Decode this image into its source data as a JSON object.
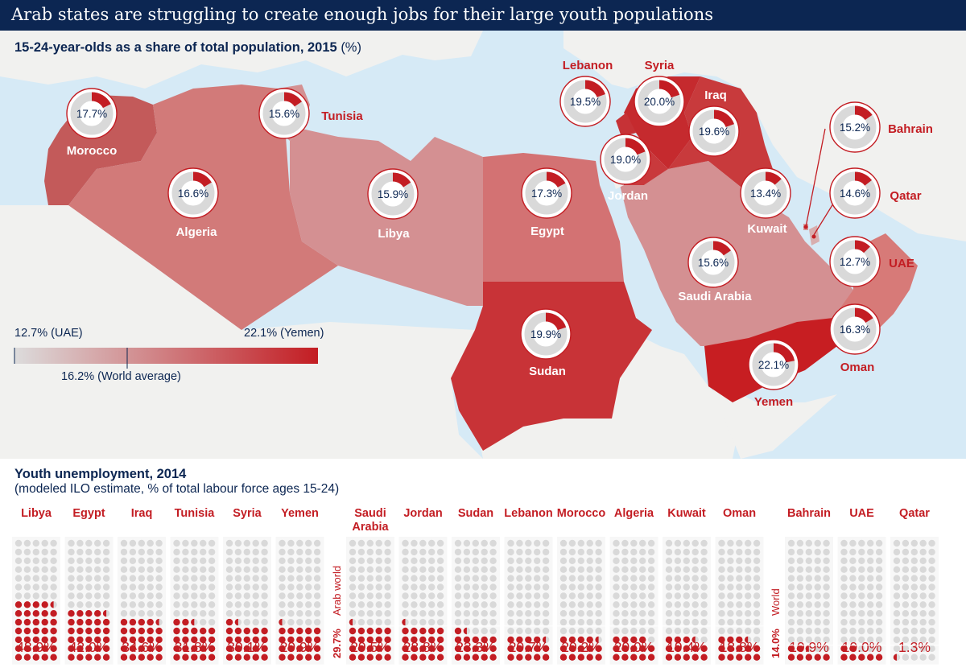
{
  "title": "Arab states are struggling to create enough jobs for their large youth populations",
  "map_section": {
    "subtitle": "15-24-year-olds as a share of total population, 2015",
    "unit": "(%)",
    "legend": {
      "min_label": "12.7% (UAE)",
      "max_label": "22.1% (Yemen)",
      "world_label": "16.2% (World average)",
      "min": 12.7,
      "max": 22.1,
      "world": 16.2,
      "color_low": "#d8d8d8",
      "color_high": "#c31d23"
    },
    "countries": [
      {
        "name": "Morocco",
        "value": 17.7,
        "value_label": "17.7%"
      },
      {
        "name": "Tunisia",
        "value": 15.6,
        "value_label": "15.6%"
      },
      {
        "name": "Algeria",
        "value": 16.6,
        "value_label": "16.6%"
      },
      {
        "name": "Libya",
        "value": 15.9,
        "value_label": "15.9%"
      },
      {
        "name": "Egypt",
        "value": 17.3,
        "value_label": "17.3%"
      },
      {
        "name": "Sudan",
        "value": 19.9,
        "value_label": "19.9%"
      },
      {
        "name": "Lebanon",
        "value": 19.5,
        "value_label": "19.5%"
      },
      {
        "name": "Syria",
        "value": 20.0,
        "value_label": "20.0%"
      },
      {
        "name": "Iraq",
        "value": 19.6,
        "value_label": "19.6%"
      },
      {
        "name": "Jordan",
        "value": 19.0,
        "value_label": "19.0%"
      },
      {
        "name": "Kuwait",
        "value": 13.4,
        "value_label": "13.4%"
      },
      {
        "name": "Bahrain",
        "value": 15.2,
        "value_label": "15.2%"
      },
      {
        "name": "Qatar",
        "value": 14.6,
        "value_label": "14.6%"
      },
      {
        "name": "UAE",
        "value": 12.7,
        "value_label": "12.7%"
      },
      {
        "name": "Saudi Arabia",
        "value": 15.6,
        "value_label": "15.6%"
      },
      {
        "name": "Oman",
        "value": 16.3,
        "value_label": "16.3%"
      },
      {
        "name": "Yemen",
        "value": 22.1,
        "value_label": "22.1%"
      }
    ]
  },
  "unemployment_section": {
    "title": "Youth unemployment, 2014",
    "note": "(modeled ILO estimate, % of total labour force ages 15-24)",
    "arab_world": {
      "label": "Arab world",
      "value": 29.7,
      "value_label": "29.7%"
    },
    "world": {
      "label": "World",
      "value": 14.0,
      "value_label": "14.0%"
    },
    "countries": [
      {
        "name": "Libya",
        "value": 48.9,
        "value_label": "48.9%"
      },
      {
        "name": "Egypt",
        "value": 42.0,
        "value_label": "42.0%"
      },
      {
        "name": "Iraq",
        "value": 34.6,
        "value_label": "34.6%"
      },
      {
        "name": "Tunisia",
        "value": 31.8,
        "value_label": "31.8%"
      },
      {
        "name": "Syria",
        "value": 30.1,
        "value_label": "30.1%"
      },
      {
        "name": "Yemen",
        "value": 29.9,
        "value_label": "29.9%"
      },
      {
        "name": "Saudi Arabia",
        "value": 29.5,
        "value_label": "29.5%"
      },
      {
        "name": "Jordan",
        "value": 28.8,
        "value_label": "28.8%"
      },
      {
        "name": "Sudan",
        "value": 23.3,
        "value_label": "23.3%"
      },
      {
        "name": "Lebanon",
        "value": 20.7,
        "value_label": "20.7%"
      },
      {
        "name": "Morocco",
        "value": 20.2,
        "value_label": "20.2%"
      },
      {
        "name": "Algeria",
        "value": 20.0,
        "value_label": "20.0%"
      },
      {
        "name": "Kuwait",
        "value": 19.4,
        "value_label": "19.4%"
      },
      {
        "name": "Oman",
        "value": 18.8,
        "value_label": "18.8%"
      },
      {
        "name": "Bahrain",
        "value": 10.9,
        "value_label": "10.9%"
      },
      {
        "name": "UAE",
        "value": 10.0,
        "value_label": "10.0%"
      },
      {
        "name": "Qatar",
        "value": 1.3,
        "value_label": "1.3%"
      }
    ]
  },
  "colors": {
    "header": "#0c2652",
    "sea": "#d6eaf6",
    "land": "#f1f1ef",
    "accent": "#c31d23",
    "dot_empty": "#d9d9d9"
  }
}
